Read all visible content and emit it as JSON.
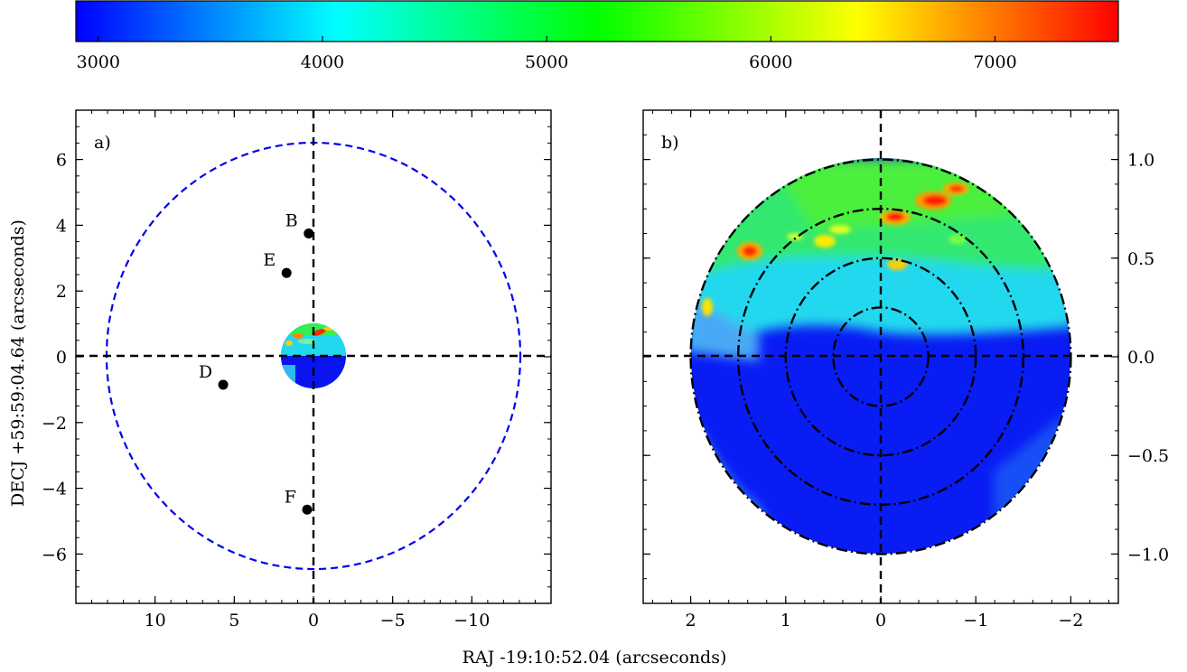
{
  "chart_data": {
    "type": "heatmap",
    "colorbar": {
      "stops": [
        "#0000ff",
        "#00ffff",
        "#00ff00",
        "#ffff00",
        "#ff0000"
      ],
      "range": [
        2900,
        7550
      ],
      "ticks": [
        3000,
        4000,
        5000,
        6000,
        7000
      ]
    },
    "xlabel": "RAJ -19:10:52.04 (arcseconds)",
    "ylabel": "DECJ +59:59:04.64 (arcseconds)",
    "panels": [
      {
        "tag": "a)",
        "xlim": [
          15,
          -15
        ],
        "ylim": [
          -7.5,
          7.5
        ],
        "xticks": [
          10,
          5,
          0,
          -5,
          -10
        ],
        "yticks": [
          -6,
          -4,
          -2,
          0,
          2,
          4,
          6
        ],
        "xtick_labels": [
          "10",
          "5",
          "0",
          "−5",
          "−10"
        ],
        "ytick_labels": [
          "−6",
          "−4",
          "−2",
          "0",
          "2",
          "4",
          "6"
        ],
        "ellipse": {
          "cx": 0,
          "cy": 0,
          "rx": 13,
          "ry": 6.5,
          "color": "#0000ee"
        },
        "map_disk_radius": 1,
        "points": [
          {
            "label": "B",
            "x": 0.3,
            "y": 3.75
          },
          {
            "label": "E",
            "x": 1.7,
            "y": 2.55
          },
          {
            "label": "D",
            "x": 5.7,
            "y": -0.85
          },
          {
            "label": "F",
            "x": 0.4,
            "y": -4.65
          }
        ]
      },
      {
        "tag": "b)",
        "xlim": [
          2.5,
          -2.5
        ],
        "ylim": [
          -1.25,
          1.25
        ],
        "xticks": [
          2,
          1,
          0,
          -1,
          -2
        ],
        "yticks": [
          -1.0,
          -0.5,
          0.0,
          0.5,
          1.0
        ],
        "xtick_labels": [
          "2",
          "1",
          "0",
          "−1",
          "−2"
        ],
        "ytick_labels": [
          "−1.0",
          "−0.5",
          "0.0",
          "0.5",
          "1.0"
        ],
        "ring_radii_y": [
          0.25,
          0.5,
          0.75,
          1.0
        ]
      }
    ]
  }
}
